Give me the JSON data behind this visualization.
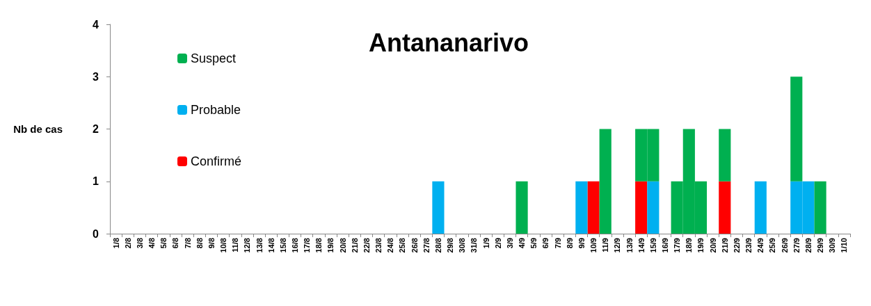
{
  "chart_data": {
    "type": "bar",
    "title": "Antananarivo",
    "ylabel": "Nb de cas",
    "stacked": true,
    "legend": "top left",
    "grid": false,
    "categories": [
      "1/8",
      "2/8",
      "3/8",
      "4/8",
      "5/8",
      "6/8",
      "7/8",
      "8/8",
      "9/8",
      "10/8",
      "11/8",
      "12/8",
      "13/8",
      "14/8",
      "15/8",
      "16/8",
      "17/8",
      "18/8",
      "19/8",
      "20/8",
      "21/8",
      "22/8",
      "23/8",
      "24/8",
      "25/8",
      "26/8",
      "27/8",
      "28/8",
      "29/8",
      "30/8",
      "31/8",
      "1/9",
      "2/9",
      "3/9",
      "4/9",
      "5/9",
      "6/9",
      "7/9",
      "8/9",
      "9/9",
      "10/9",
      "11/9",
      "12/9",
      "13/9",
      "14/9",
      "15/9",
      "16/9",
      "17/9",
      "18/9",
      "19/9",
      "20/9",
      "21/9",
      "22/9",
      "23/9",
      "24/9",
      "25/9",
      "26/9",
      "27/9",
      "28/9",
      "29/9",
      "30/9",
      "1/10"
    ],
    "ylim": [
      0,
      4
    ],
    "yticks": [
      0,
      1,
      2,
      3,
      4
    ],
    "series": [
      {
        "name": "Confirmé",
        "color": "#ff0000",
        "values": [
          0,
          0,
          0,
          0,
          0,
          0,
          0,
          0,
          0,
          0,
          0,
          0,
          0,
          0,
          0,
          0,
          0,
          0,
          0,
          0,
          0,
          0,
          0,
          0,
          0,
          0,
          0,
          0,
          0,
          0,
          0,
          0,
          0,
          0,
          0,
          0,
          0,
          0,
          0,
          0,
          1,
          0,
          0,
          0,
          1,
          0,
          0,
          0,
          0,
          0,
          0,
          1,
          0,
          0,
          0,
          0,
          0,
          0,
          0,
          0,
          0,
          0
        ]
      },
      {
        "name": "Probable",
        "color": "#00b0f0",
        "values": [
          0,
          0,
          0,
          0,
          0,
          0,
          0,
          0,
          0,
          0,
          0,
          0,
          0,
          0,
          0,
          0,
          0,
          0,
          0,
          0,
          0,
          0,
          0,
          0,
          0,
          0,
          0,
          1,
          0,
          0,
          0,
          0,
          0,
          0,
          0,
          0,
          0,
          0,
          0,
          1,
          0,
          0,
          0,
          0,
          0,
          1,
          0,
          0,
          0,
          0,
          0,
          0,
          0,
          0,
          1,
          0,
          0,
          1,
          1,
          0,
          0,
          0
        ]
      },
      {
        "name": "Suspect",
        "color": "#00b050",
        "values": [
          0,
          0,
          0,
          0,
          0,
          0,
          0,
          0,
          0,
          0,
          0,
          0,
          0,
          0,
          0,
          0,
          0,
          0,
          0,
          0,
          0,
          0,
          0,
          0,
          0,
          0,
          0,
          0,
          0,
          0,
          0,
          0,
          0,
          0,
          1,
          0,
          0,
          0,
          0,
          0,
          0,
          2,
          0,
          0,
          1,
          1,
          0,
          1,
          2,
          1,
          0,
          1,
          0,
          0,
          0,
          0,
          0,
          2,
          0,
          1,
          0,
          0
        ]
      }
    ]
  }
}
